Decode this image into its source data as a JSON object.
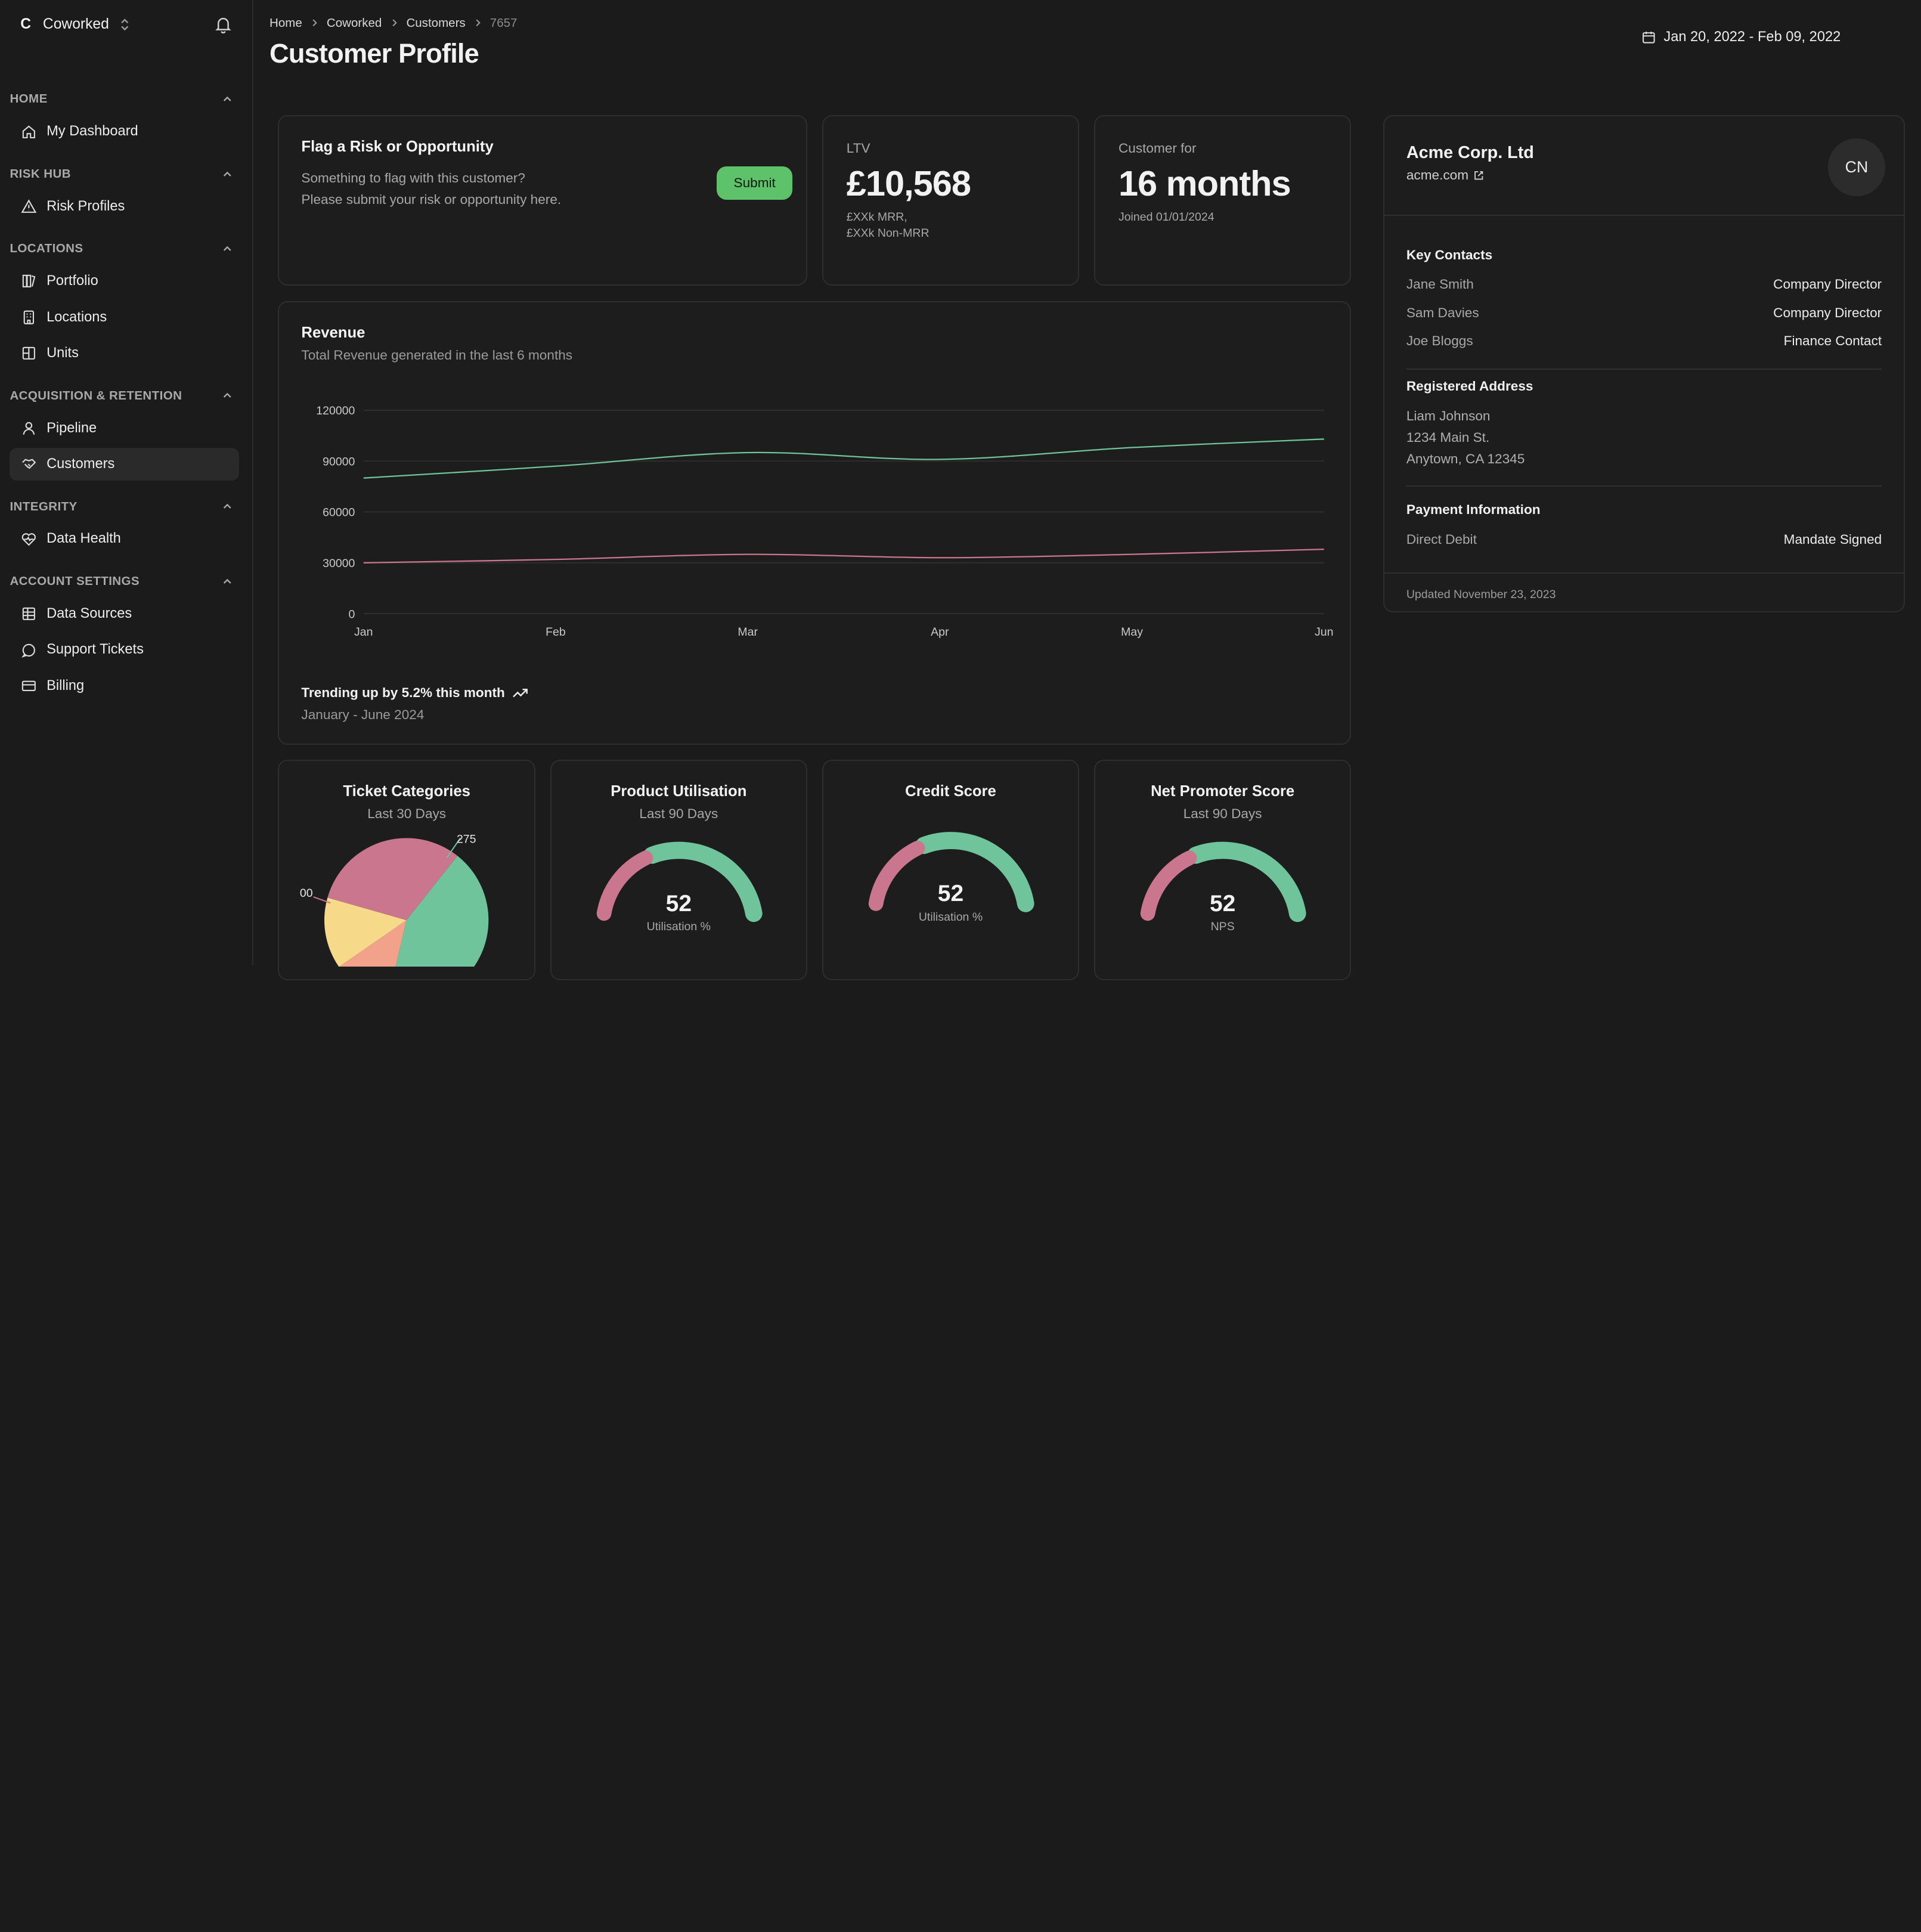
{
  "org": {
    "letter": "C",
    "name": "Coworked"
  },
  "sidebar": {
    "sections": [
      {
        "title": "HOME",
        "items": [
          {
            "label": "My Dashboard"
          }
        ]
      },
      {
        "title": "RISK HUB",
        "items": [
          {
            "label": "Risk Profiles"
          }
        ]
      },
      {
        "title": "LOCATIONS",
        "items": [
          {
            "label": "Portfolio"
          },
          {
            "label": "Locations"
          },
          {
            "label": "Units"
          }
        ]
      },
      {
        "title": "ACQUISITION & RETENTION",
        "items": [
          {
            "label": "Pipeline"
          },
          {
            "label": "Customers"
          }
        ]
      },
      {
        "title": "INTEGRITY",
        "items": [
          {
            "label": "Data Health"
          }
        ]
      },
      {
        "title": "ACCOUNT SETTINGS",
        "items": [
          {
            "label": "Data Sources"
          },
          {
            "label": "Support Tickets"
          },
          {
            "label": "Billing"
          }
        ]
      }
    ]
  },
  "breadcrumb": [
    "Home",
    "Coworked",
    "Customers",
    "7657"
  ],
  "page_title": "Customer Profile",
  "date_range": "Jan 20, 2022 - Feb 09, 2022",
  "flag": {
    "title": "Flag a Risk or Opportunity",
    "line1": "Something to flag with this customer?",
    "line2": "Please submit your risk or opportunity here.",
    "button": "Submit"
  },
  "ltv": {
    "label": "LTV",
    "value": "£10,568",
    "line1": "£XXk MRR,",
    "line2": "£XXk Non-MRR"
  },
  "tenure": {
    "label": "Customer for",
    "value": "16 months",
    "sub": "Joined 01/01/2024"
  },
  "revenue": {
    "title": "Revenue",
    "subtitle": "Total Revenue generated in the last 6 months",
    "trend": "Trending up by 5.2% this month",
    "period": "January - June 2024"
  },
  "chart_data": {
    "type": "line",
    "categories": [
      "Jan",
      "Feb",
      "Mar",
      "Apr",
      "May",
      "Jun"
    ],
    "series": [
      {
        "values": [
          80000,
          87000,
          95000,
          91000,
          98000,
          103000
        ],
        "color": "#6fc49c"
      },
      {
        "values": [
          30000,
          32000,
          35000,
          33000,
          35000,
          38000
        ],
        "color": "#c9768e"
      }
    ],
    "yticks": [
      0,
      30000,
      60000,
      90000,
      120000
    ],
    "ylim": [
      0,
      120000
    ],
    "grid": true
  },
  "tickets": {
    "title": "Ticket Categories",
    "sub": "Last 30 Days",
    "label_a": "275",
    "label_b": "00",
    "slices": [
      {
        "value": 275,
        "color": "#6fc49c"
      },
      {
        "value": 75,
        "color": "#f2a28a"
      },
      {
        "value": 90,
        "color": "#f7d98a"
      },
      {
        "value": 200,
        "color": "#c9768e"
      }
    ]
  },
  "gauges": [
    {
      "title": "Product Utilisation",
      "sub": "Last 90 Days",
      "value": "52",
      "label": "Utilisation %"
    },
    {
      "title": "Credit Score",
      "sub": "",
      "value": "52",
      "label": "Utilisation %"
    },
    {
      "title": "Net Promoter Score",
      "sub": "Last 90 Days",
      "value": "52",
      "label": "NPS"
    }
  ],
  "gauge_value_fraction": 0.52,
  "colors": {
    "accent_green": "#6fc49c",
    "accent_pink": "#c9768e",
    "button_green": "#5ec26a"
  },
  "profile": {
    "company": "Acme Corp. Ltd",
    "website": "acme.com",
    "initials": "CN",
    "contacts_title": "Key Contacts",
    "contacts": [
      {
        "name": "Jane Smith",
        "role": "Company Director"
      },
      {
        "name": "Sam Davies",
        "role": "Company Director"
      },
      {
        "name": "Joe Bloggs",
        "role": "Finance Contact"
      }
    ],
    "address_title": "Registered Address",
    "address": [
      "Liam Johnson",
      "1234 Main St.",
      "Anytown, CA 12345"
    ],
    "payment_title": "Payment Information",
    "payment_method": "Direct Debit",
    "payment_status": "Mandate Signed",
    "updated": "Updated November 23, 2023"
  }
}
